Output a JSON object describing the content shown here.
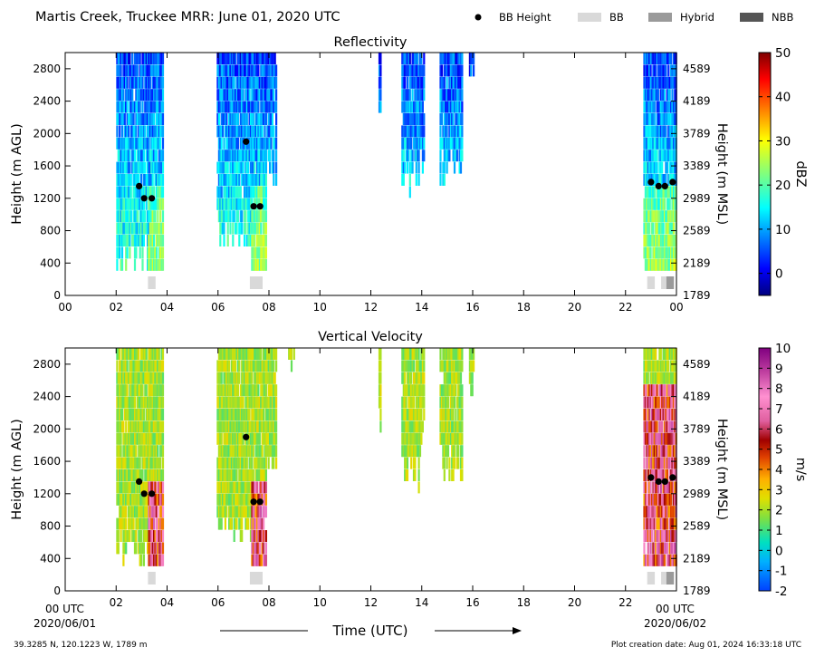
{
  "header": {
    "title": "Martis Creek, Truckee MRR:  June 01, 2020 UTC",
    "legend": [
      {
        "label": "BB Height",
        "symbol": "dot"
      },
      {
        "label": "BB",
        "color": "#d9d9d9"
      },
      {
        "label": "Hybrid",
        "color": "#9a9a9a"
      },
      {
        "label": "NBB",
        "color": "#555555"
      }
    ]
  },
  "footer": {
    "location": "39.3285 N, 120.1223 W, 1789 m",
    "creation": "Plot creation date: Aug 01, 2024 16:33:18 UTC",
    "xlabel": "Time (UTC)",
    "start_time_label": "00 UTC",
    "start_date": "2020/06/01",
    "end_time_label": "00 UTC",
    "end_date": "2020/06/02"
  },
  "colors": {
    "bb": "#d9d9d9",
    "hybrid": "#9a9a9a",
    "nbb": "#555555",
    "bb_marker": "#000000"
  },
  "chart_data": [
    {
      "type": "heatmap",
      "title": "Reflectivity",
      "ylabel": "Height (m AGL)",
      "ylabel_right": "Height (m MSL)",
      "xlim": [
        0,
        24
      ],
      "ylim": [
        0,
        3000
      ],
      "x_ticks": [
        "00",
        "02",
        "04",
        "06",
        "08",
        "10",
        "12",
        "14",
        "16",
        "18",
        "20",
        "22",
        "00"
      ],
      "y_ticks": [
        0,
        400,
        800,
        1200,
        1600,
        2000,
        2400,
        2800
      ],
      "y_ticks_right": [
        1789,
        2189,
        2589,
        2989,
        3389,
        3789,
        4189,
        4589
      ],
      "colorbar": {
        "label": "dBZ",
        "min": -5,
        "max": 50,
        "ticks": [
          0,
          10,
          20,
          30,
          40,
          50
        ],
        "colormap": "jet"
      },
      "bright_band_heights": [
        {
          "x": 2.9,
          "y": 1350
        },
        {
          "x": 3.1,
          "y": 1200
        },
        {
          "x": 3.4,
          "y": 1200
        },
        {
          "x": 7.1,
          "y": 1900
        },
        {
          "x": 7.4,
          "y": 1100
        },
        {
          "x": 7.65,
          "y": 1100
        },
        {
          "x": 23.0,
          "y": 1400
        },
        {
          "x": 23.3,
          "y": 1350
        },
        {
          "x": 23.55,
          "y": 1350
        },
        {
          "x": 23.85,
          "y": 1400
        }
      ],
      "bb_type_bars": [
        {
          "x_start": 3.25,
          "x_end": 3.55,
          "type": "BB"
        },
        {
          "x_start": 7.25,
          "x_end": 7.75,
          "type": "BB"
        },
        {
          "x_start": 22.85,
          "x_end": 23.15,
          "type": "BB"
        },
        {
          "x_start": 23.4,
          "x_end": 23.6,
          "type": "BB"
        },
        {
          "x_start": 23.6,
          "x_end": 23.9,
          "type": "Hybrid"
        }
      ]
    },
    {
      "type": "heatmap",
      "title": "Vertical Velocity",
      "ylabel": "Height (m AGL)",
      "ylabel_right": "Height (m MSL)",
      "xlim": [
        0,
        24
      ],
      "ylim": [
        0,
        3000
      ],
      "x_ticks": [
        "",
        "02",
        "04",
        "06",
        "08",
        "10",
        "12",
        "14",
        "16",
        "18",
        "20",
        "22",
        ""
      ],
      "y_ticks": [
        0,
        400,
        800,
        1200,
        1600,
        2000,
        2400,
        2800
      ],
      "y_ticks_right": [
        1789,
        2189,
        2589,
        2989,
        3389,
        3789,
        4189,
        4589
      ],
      "colorbar": {
        "label": "m/s",
        "min": -2,
        "max": 10,
        "ticks": [
          -2,
          -1,
          0,
          1,
          2,
          3,
          4,
          5,
          6,
          7,
          8,
          9,
          10
        ],
        "colormap": "velocity"
      },
      "bright_band_heights": [
        {
          "x": 2.9,
          "y": 1350
        },
        {
          "x": 3.1,
          "y": 1200
        },
        {
          "x": 3.4,
          "y": 1200
        },
        {
          "x": 7.1,
          "y": 1900
        },
        {
          "x": 7.4,
          "y": 1100
        },
        {
          "x": 7.65,
          "y": 1100
        },
        {
          "x": 23.0,
          "y": 1400
        },
        {
          "x": 23.3,
          "y": 1350
        },
        {
          "x": 23.55,
          "y": 1350
        },
        {
          "x": 23.85,
          "y": 1400
        }
      ],
      "bb_type_bars": [
        {
          "x_start": 3.25,
          "x_end": 3.55,
          "type": "BB"
        },
        {
          "x_start": 7.25,
          "x_end": 7.75,
          "type": "BB"
        },
        {
          "x_start": 22.85,
          "x_end": 23.15,
          "type": "BB"
        },
        {
          "x_start": 23.4,
          "x_end": 23.6,
          "type": "BB"
        },
        {
          "x_start": 23.6,
          "x_end": 23.9,
          "type": "Hybrid"
        }
      ]
    }
  ]
}
